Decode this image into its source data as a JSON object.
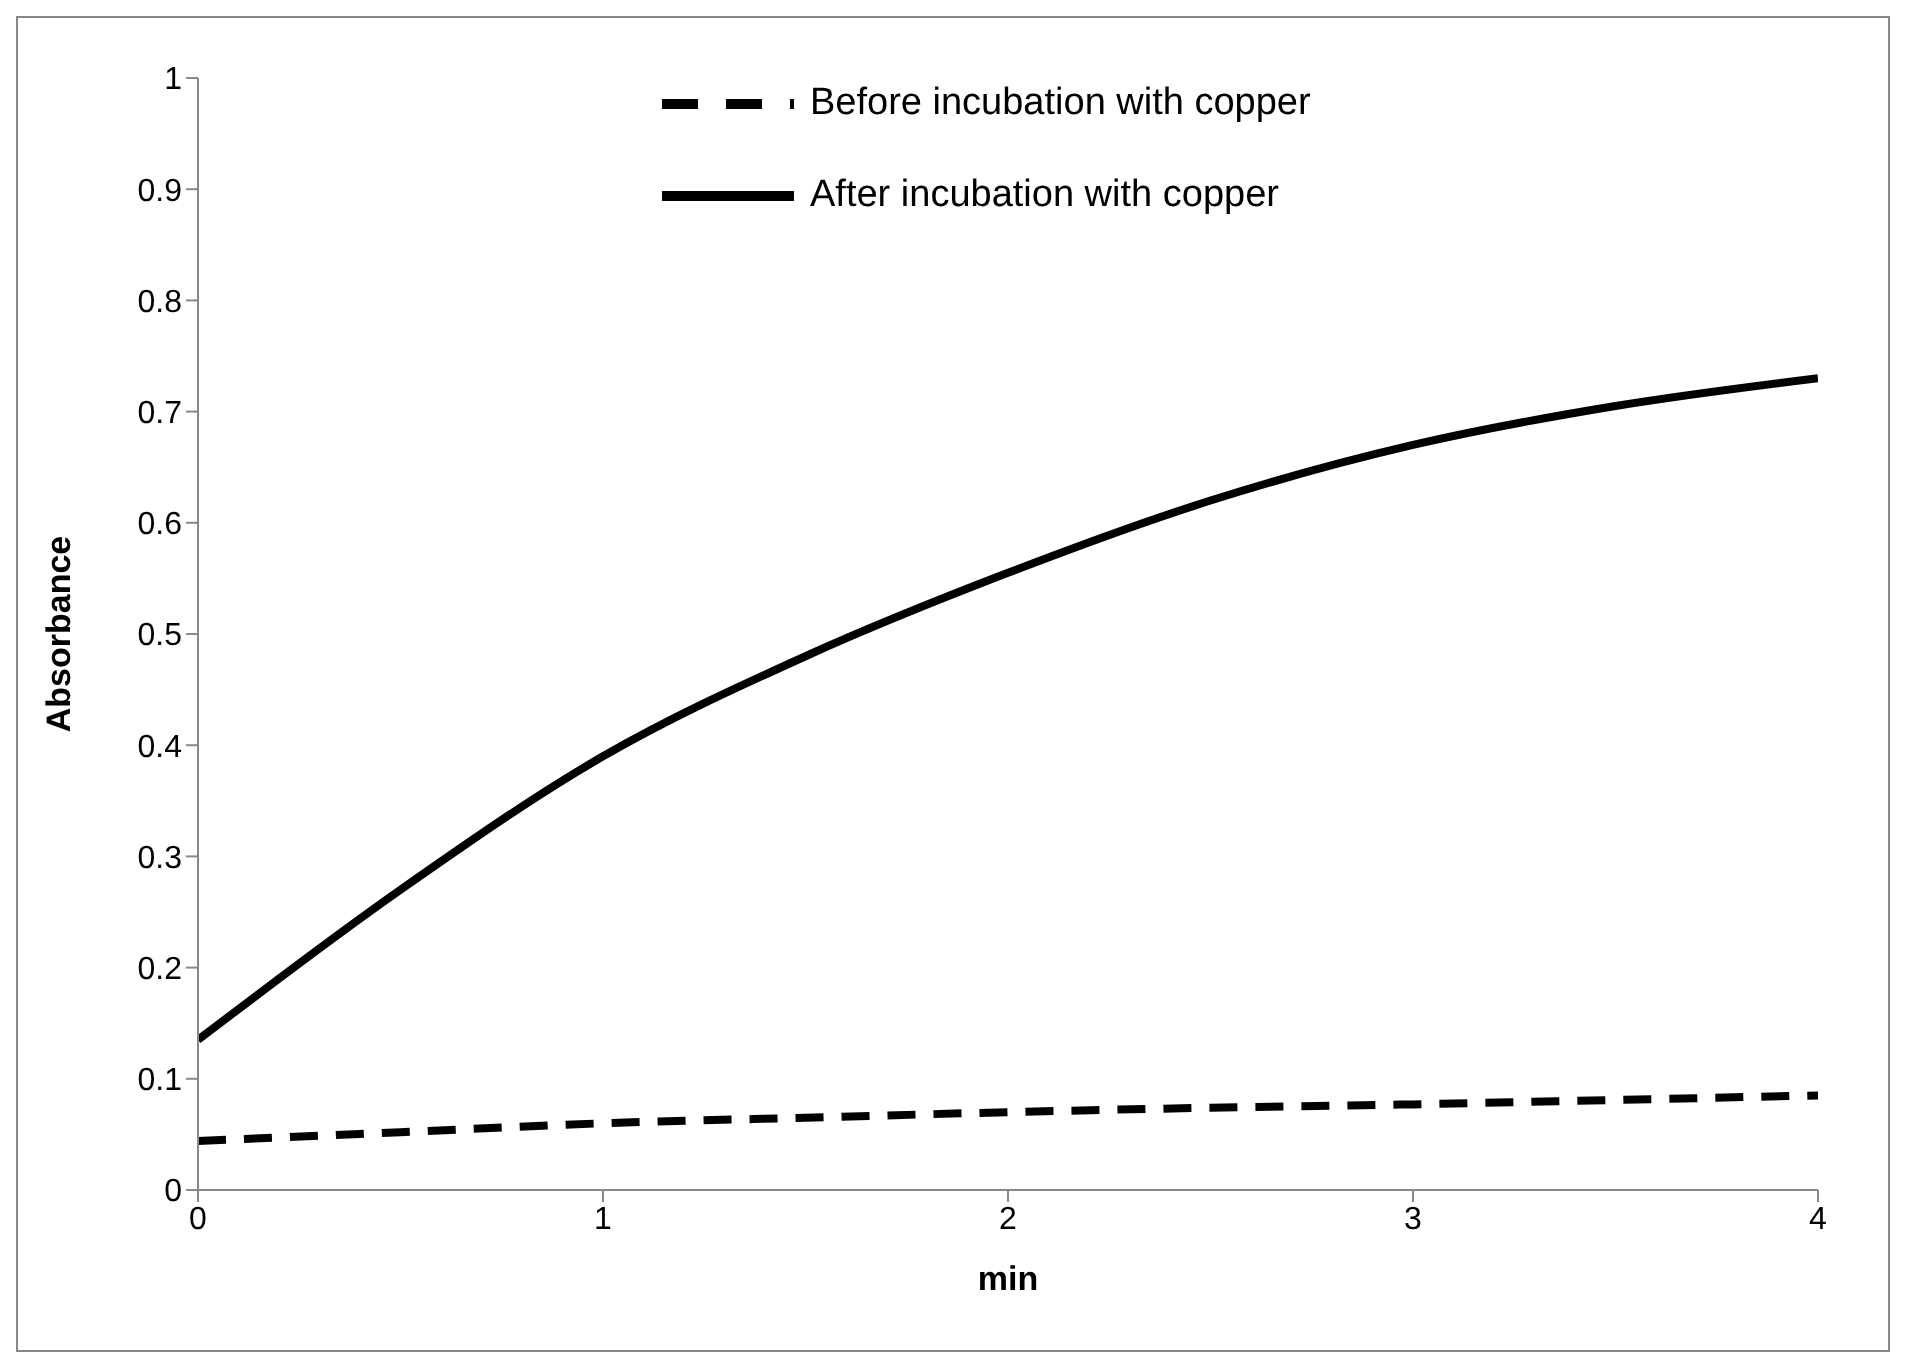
{
  "chart_data": {
    "type": "line",
    "xlabel": "min",
    "ylabel": "Absorbance",
    "x": [
      0,
      0.5,
      1,
      1.5,
      2,
      2.5,
      3,
      3.5,
      4
    ],
    "series": [
      {
        "name": "Before incubation with copper",
        "color": "#000000",
        "line_style": "dashed",
        "values": [
          0.044,
          0.052,
          0.06,
          0.065,
          0.07,
          0.074,
          0.077,
          0.081,
          0.085
        ]
      },
      {
        "name": "After incubation with copper",
        "color": "#000000",
        "line_style": "solid",
        "values": [
          0.135,
          0.27,
          0.39,
          0.48,
          0.555,
          0.62,
          0.67,
          0.705,
          0.73
        ]
      }
    ],
    "xlim": [
      0,
      4
    ],
    "xticks": [
      0,
      1,
      2,
      3,
      4
    ],
    "ylim": [
      0,
      1
    ],
    "yticks": [
      0,
      0.1,
      0.2,
      0.3,
      0.4,
      0.5,
      0.6,
      0.7,
      0.8,
      0.9,
      1
    ],
    "grid": false,
    "legend": "top",
    "marker": "none"
  }
}
